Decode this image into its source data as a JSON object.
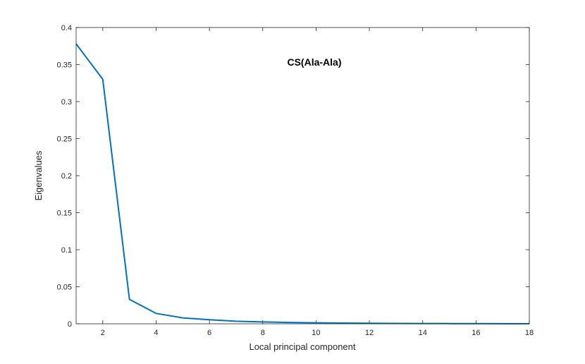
{
  "chart_data": {
    "type": "line",
    "title": "",
    "annotation": "CS(Ala-Ala)",
    "xlabel": "Local principal component",
    "ylabel": "Eigenvalues",
    "xlim": [
      1,
      18
    ],
    "ylim": [
      0,
      0.4
    ],
    "xticks": [
      2,
      4,
      6,
      8,
      10,
      12,
      14,
      16,
      18
    ],
    "yticks": [
      0,
      0.05,
      0.1,
      0.15,
      0.2,
      0.25,
      0.3,
      0.35,
      0.4
    ],
    "grid": false,
    "line_color": "#0072BD",
    "series": [
      {
        "x": [
          1,
          2,
          3,
          4,
          5,
          6,
          7,
          8,
          9,
          10,
          11,
          12,
          13,
          14,
          15,
          16,
          17,
          18
        ],
        "values": [
          0.378,
          0.33,
          0.033,
          0.014,
          0.008,
          0.0055,
          0.0035,
          0.0025,
          0.0018,
          0.0013,
          0.0009,
          0.0007,
          0.0005,
          0.0004,
          0.0003,
          0.0002,
          0.0001,
          0.0001
        ]
      }
    ]
  }
}
